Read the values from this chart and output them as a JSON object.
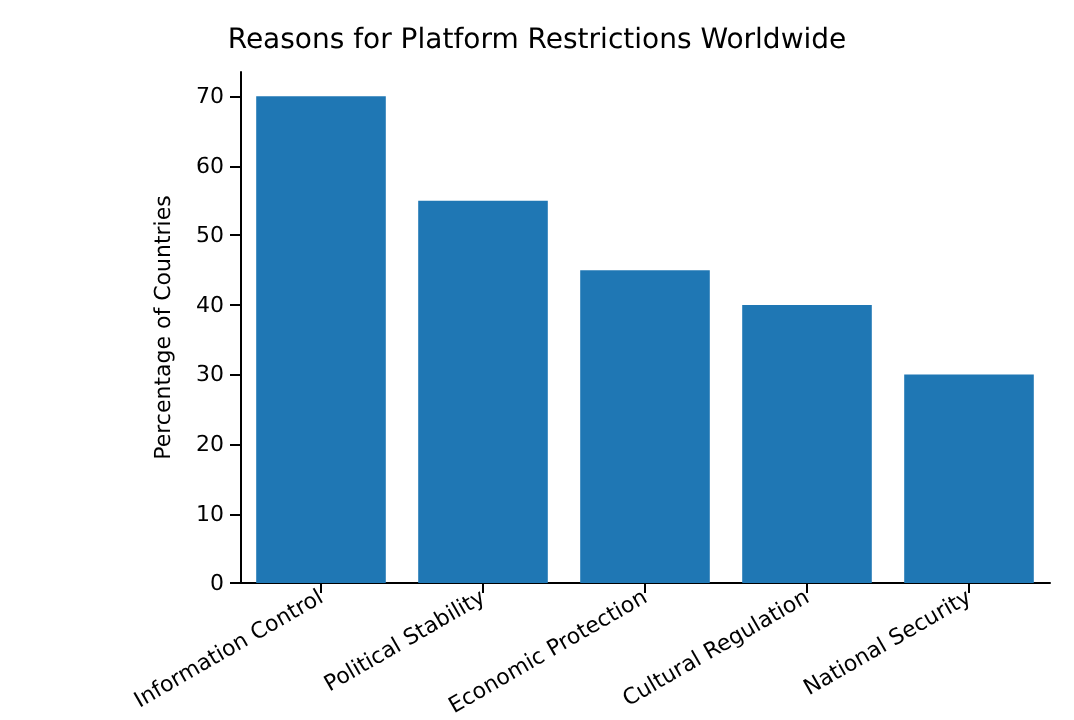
{
  "chart_data": {
    "type": "bar",
    "title": "Reasons for Platform Restrictions Worldwide",
    "ylabel": "Percentage of Countries",
    "categories": [
      "Information Control",
      "Political Stability",
      "Economic Protection",
      "Cultural Regulation",
      "National Security"
    ],
    "values": [
      70,
      55,
      45,
      40,
      30
    ],
    "color": "#1f77b4",
    "ylim": [
      0,
      73.5
    ],
    "yticks": [
      0,
      10,
      20,
      30,
      40,
      50,
      60,
      70
    ],
    "grid": false
  }
}
